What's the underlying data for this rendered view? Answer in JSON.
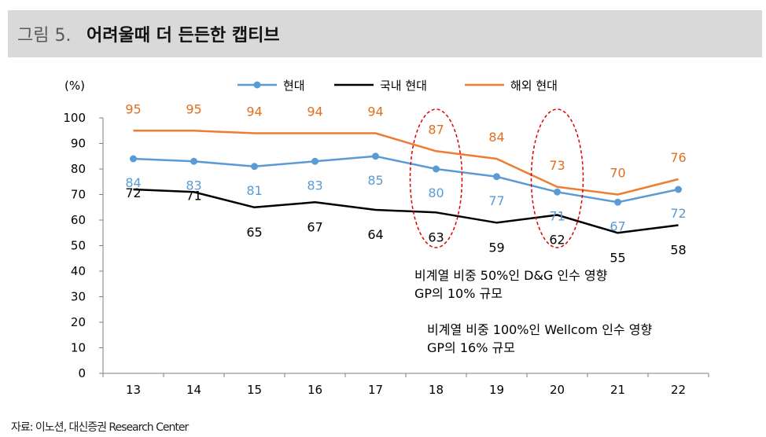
{
  "header": {
    "figure_label": "그림 5.",
    "title": "어려울때 더 든든한 캡티브"
  },
  "source": "자료: 이노션, 대신증권 Research Center",
  "chart_data": {
    "type": "line",
    "ylabel": "(%)",
    "ylim": [
      0,
      100
    ],
    "y_ticks": [
      0,
      10,
      20,
      30,
      40,
      50,
      60,
      70,
      80,
      90,
      100
    ],
    "categories": [
      "13",
      "14",
      "15",
      "16",
      "17",
      "18",
      "19",
      "20",
      "21",
      "22"
    ],
    "legend_position": "top",
    "grid": false,
    "series": [
      {
        "name": "현대",
        "color": "#5b9bd5",
        "marker": "circle",
        "values": [
          84,
          83,
          81,
          83,
          85,
          80,
          77,
          71,
          67,
          72
        ]
      },
      {
        "name": "국내 현대",
        "color": "#000000",
        "marker": "none",
        "values": [
          72,
          71,
          65,
          67,
          64,
          63,
          59,
          62,
          55,
          58
        ]
      },
      {
        "name": "해외 현대",
        "color": "#ed7d31",
        "marker": "none",
        "values": [
          95,
          95,
          94,
          94,
          94,
          87,
          84,
          73,
          70,
          76
        ]
      }
    ],
    "annotations": [
      {
        "line1": "비계열 비중 50%인 D&G 인수 영향",
        "line2": "GP의 10% 규모"
      },
      {
        "line1": "비계열 비중 100%인 Wellcom 인수 영향",
        "line2": "GP의 16% 규모"
      }
    ],
    "highlighted_categories": [
      "18",
      "20"
    ],
    "highlight_color": "#e00000"
  }
}
